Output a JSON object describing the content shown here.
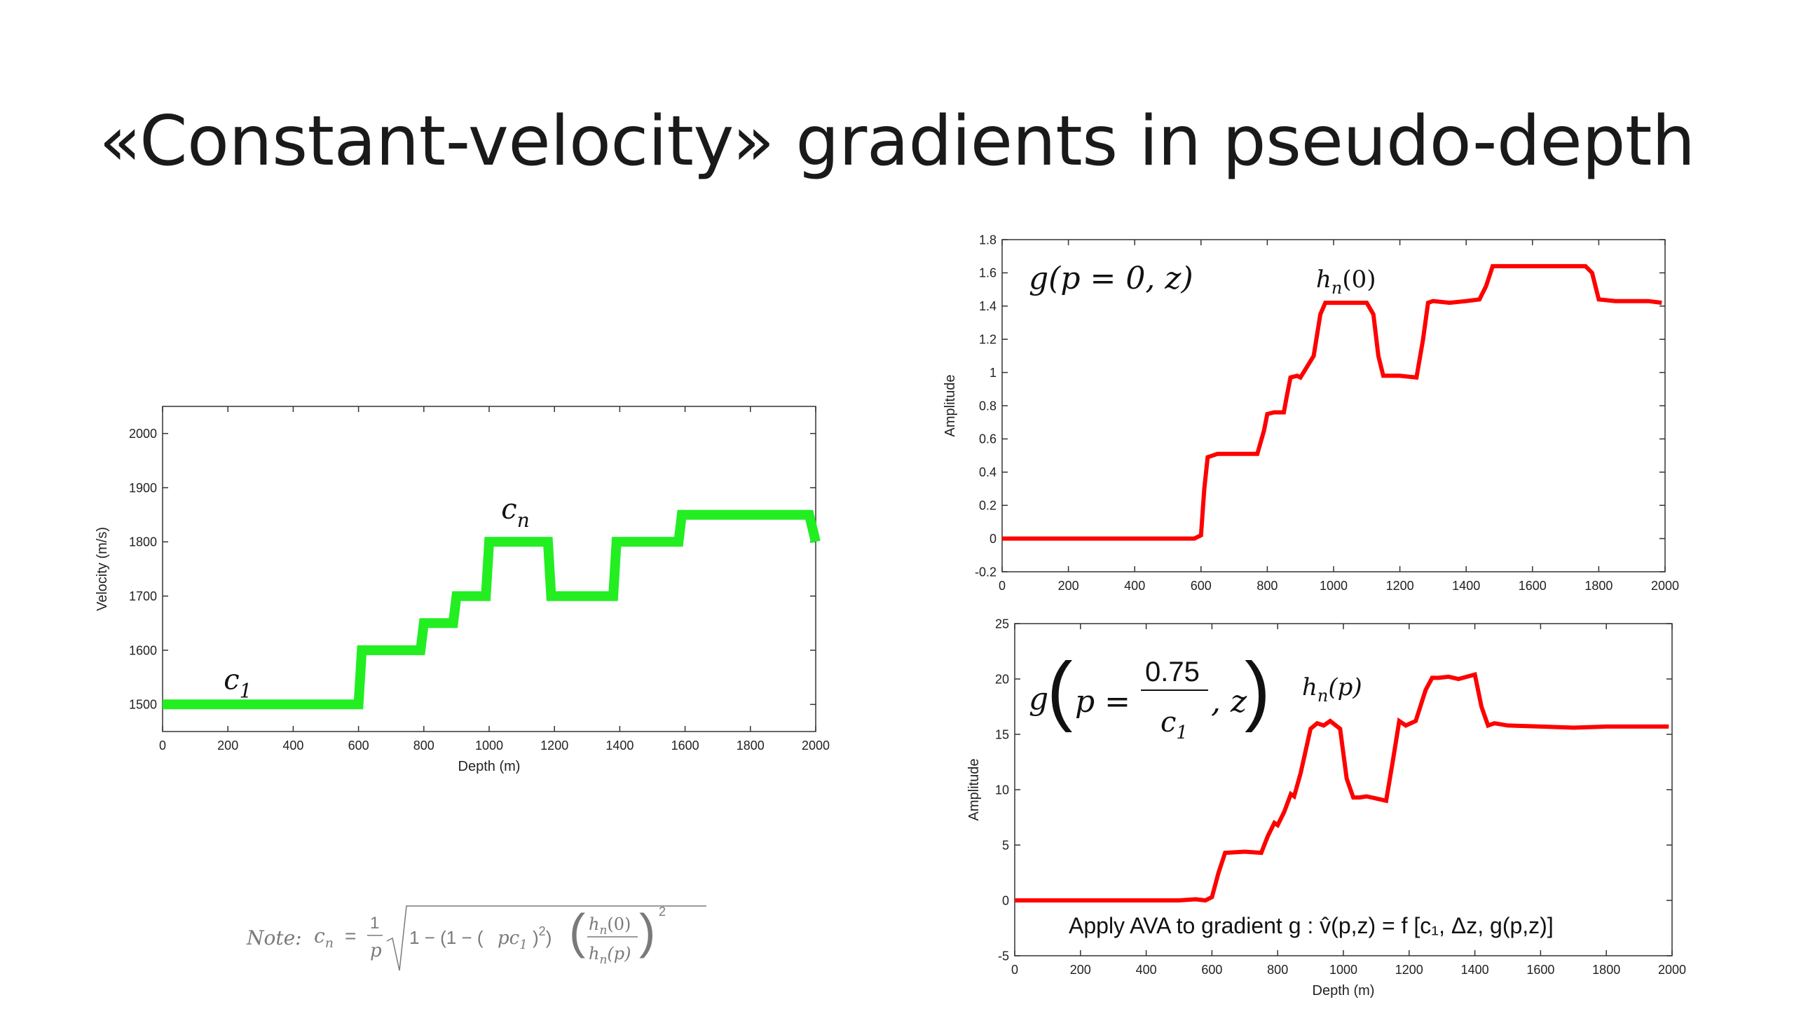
{
  "slide": {
    "title": "«Constant-velocity» gradients in pseudo-depth",
    "note_label": "Note:",
    "note_formula": "c_n = (1/p) √(1 − (1 − (pc₁)²)(hₙ(0)/hₙ(p))²)"
  },
  "chart_data": [
    {
      "type": "line",
      "xlabel": "Depth (m)",
      "ylabel": "Velocity (m/s)",
      "xlim": [
        0,
        2000
      ],
      "ylim": [
        1450,
        2050
      ],
      "xticks": [
        0,
        200,
        400,
        600,
        800,
        1000,
        1200,
        1400,
        1600,
        1800,
        2000
      ],
      "yticks": [
        1500,
        1600,
        1700,
        1800,
        1900,
        2000
      ],
      "grid": false,
      "color": "#22ee22",
      "annotations": [
        {
          "text": "c",
          "sub": "1",
          "x": 200,
          "y": 1515
        },
        {
          "text": "c",
          "sub": "n",
          "x": 1050,
          "y": 1830
        }
      ],
      "series": [
        {
          "x": [
            0,
            600,
            610,
            790,
            800,
            890,
            900,
            990,
            1000,
            1180,
            1190,
            1380,
            1390,
            1580,
            1590,
            1980,
            2000
          ],
          "y": [
            1500,
            1500,
            1600,
            1600,
            1650,
            1650,
            1700,
            1700,
            1800,
            1800,
            1700,
            1700,
            1800,
            1800,
            1850,
            1850,
            1800
          ]
        }
      ]
    },
    {
      "type": "line",
      "title": "g(p = 0, z)",
      "ylabel": "Amplitude",
      "xlim": [
        0,
        2000
      ],
      "ylim": [
        -0.2,
        1.8
      ],
      "xticks": [
        0,
        200,
        400,
        600,
        800,
        1000,
        1200,
        1400,
        1600,
        1800,
        2000
      ],
      "yticks": [
        -0.2,
        0,
        0.2,
        0.4,
        0.6,
        0.8,
        1,
        1.2,
        1.4,
        1.6,
        1.8
      ],
      "ytick_labels": [
        "-0.2",
        "0",
        "0.2",
        "0.4",
        "0.6",
        "0.8",
        "1",
        "1.2",
        "1.4",
        "1.6",
        "1.8"
      ],
      "grid": false,
      "color": "#ff0000",
      "annotation": {
        "text": "hn(0)",
        "base": "h",
        "sub": "n",
        "rest": "(0)",
        "x": 1000,
        "y": 1.57
      },
      "series": [
        {
          "x": [
            0,
            580,
            600,
            610,
            620,
            650,
            700,
            750,
            770,
            790,
            800,
            820,
            850,
            860,
            870,
            890,
            900,
            940,
            960,
            975,
            1000,
            1050,
            1100,
            1120,
            1135,
            1150,
            1200,
            1250,
            1270,
            1285,
            1300,
            1350,
            1400,
            1440,
            1460,
            1480,
            1500,
            1600,
            1700,
            1760,
            1780,
            1800,
            1850,
            1900,
            1950,
            1990
          ],
          "y": [
            0,
            0,
            0.02,
            0.3,
            0.49,
            0.51,
            0.51,
            0.51,
            0.51,
            0.65,
            0.75,
            0.76,
            0.76,
            0.87,
            0.97,
            0.98,
            0.97,
            1.1,
            1.35,
            1.42,
            1.42,
            1.42,
            1.42,
            1.35,
            1.1,
            0.98,
            0.98,
            0.97,
            1.2,
            1.42,
            1.43,
            1.42,
            1.43,
            1.44,
            1.52,
            1.64,
            1.64,
            1.64,
            1.64,
            1.64,
            1.6,
            1.44,
            1.43,
            1.43,
            1.43,
            1.42
          ]
        }
      ]
    },
    {
      "type": "line",
      "xlabel": "Depth (m)",
      "ylabel": "Amplitude",
      "xlim": [
        0,
        2000
      ],
      "ylim": [
        -5,
        25
      ],
      "xticks": [
        0,
        200,
        400,
        600,
        800,
        1000,
        1200,
        1400,
        1600,
        1800,
        2000
      ],
      "yticks": [
        -5,
        0,
        5,
        10,
        15,
        20,
        25
      ],
      "grid": false,
      "color": "#ff0000",
      "annotation_title": {
        "parts": [
          "g",
          "p =",
          "0.75",
          "c",
          "1",
          ", z"
        ],
        "text": "g(p = 0.75/c1, z)"
      },
      "annotation": {
        "text": "hn(p)",
        "base": "h",
        "sub": "n",
        "rest": "(p)",
        "x": 980,
        "y": 18.8
      },
      "caption": "Apply AVA to gradient g : v̂(p,z) = f [c₁, Δz, g(p,z)]",
      "series": [
        {
          "x": [
            0,
            500,
            550,
            580,
            600,
            620,
            640,
            700,
            750,
            770,
            790,
            800,
            820,
            840,
            850,
            870,
            900,
            920,
            940,
            960,
            990,
            1010,
            1030,
            1050,
            1070,
            1100,
            1130,
            1150,
            1170,
            1190,
            1220,
            1250,
            1270,
            1290,
            1320,
            1350,
            1400,
            1420,
            1440,
            1460,
            1500,
            1600,
            1700,
            1800,
            1900,
            1990
          ],
          "y": [
            0,
            0,
            0.1,
            0,
            0.3,
            2.5,
            4.3,
            4.4,
            4.3,
            5.8,
            7.0,
            6.8,
            8.0,
            9.6,
            9.4,
            11.5,
            15.5,
            16.0,
            15.8,
            16.2,
            15.5,
            11.0,
            9.3,
            9.3,
            9.4,
            9.2,
            9.0,
            12.5,
            16.2,
            15.8,
            16.2,
            19.0,
            20.1,
            20.1,
            20.2,
            20.0,
            20.4,
            17.5,
            15.8,
            16.0,
            15.8,
            15.7,
            15.6,
            15.7,
            15.7,
            15.7
          ]
        }
      ]
    }
  ]
}
